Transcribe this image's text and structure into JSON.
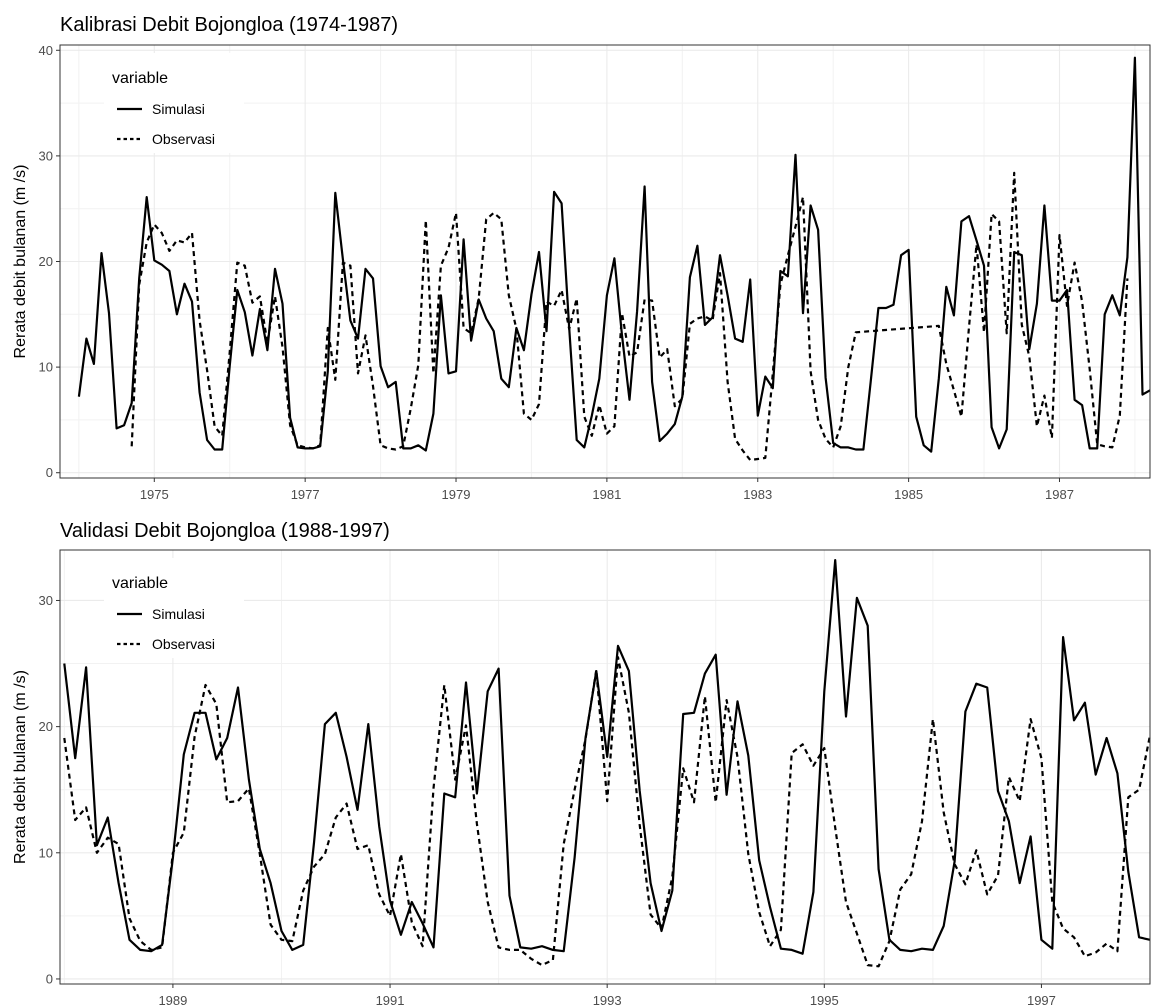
{
  "chart_data": [
    {
      "type": "line",
      "title": "Kalibrasi Debit Bojongloa (1974-1987)",
      "xlabel": "",
      "ylabel": "Rerata debit bulanan (m /s)",
      "xlim": [
        1973.75,
        1988.2
      ],
      "ylim": [
        -0.5,
        40.5
      ],
      "y_ticks": [
        0,
        10,
        20,
        30,
        40
      ],
      "x_ticks": [
        1975,
        1977,
        1979,
        1981,
        1983,
        1985,
        1987
      ],
      "grid": true,
      "legend": {
        "title": "variable",
        "position": "top-left"
      },
      "series": [
        {
          "name": "Simulasi",
          "line_style": "solid",
          "color": "#000000",
          "points": [
            [
              1974.0,
              7.2
            ],
            [
              1974.1,
              12.7
            ],
            [
              1974.2,
              10.3
            ],
            [
              1974.3,
              20.8
            ],
            [
              1974.4,
              15.1
            ],
            [
              1974.5,
              4.2
            ],
            [
              1974.6,
              4.5
            ],
            [
              1974.7,
              6.6
            ],
            [
              1974.8,
              18.4
            ],
            [
              1974.9,
              26.1
            ],
            [
              1975.0,
              20.1
            ],
            [
              1975.1,
              19.7
            ],
            [
              1975.2,
              19.1
            ],
            [
              1975.3,
              15.0
            ],
            [
              1975.4,
              17.9
            ],
            [
              1975.5,
              16.2
            ],
            [
              1975.6,
              7.6
            ],
            [
              1975.7,
              3.1
            ],
            [
              1975.8,
              2.2
            ],
            [
              1975.9,
              2.2
            ],
            [
              1976.0,
              10.1
            ],
            [
              1976.1,
              17.3
            ],
            [
              1976.2,
              15.2
            ],
            [
              1976.3,
              11.1
            ],
            [
              1976.4,
              15.5
            ],
            [
              1976.5,
              11.6
            ],
            [
              1976.6,
              19.3
            ],
            [
              1976.7,
              16.0
            ],
            [
              1976.8,
              5.2
            ],
            [
              1976.9,
              2.4
            ],
            [
              1977.0,
              2.3
            ],
            [
              1977.1,
              2.3
            ],
            [
              1977.2,
              2.5
            ],
            [
              1977.3,
              9.6
            ],
            [
              1977.4,
              26.5
            ],
            [
              1977.5,
              20.2
            ],
            [
              1977.6,
              14.4
            ],
            [
              1977.7,
              12.7
            ],
            [
              1977.8,
              19.3
            ],
            [
              1977.9,
              18.4
            ],
            [
              1978.0,
              10.1
            ],
            [
              1978.1,
              8.1
            ],
            [
              1978.2,
              8.6
            ],
            [
              1978.3,
              2.3
            ],
            [
              1978.4,
              2.3
            ],
            [
              1978.5,
              2.6
            ],
            [
              1978.6,
              2.1
            ],
            [
              1978.7,
              5.6
            ],
            [
              1978.8,
              16.8
            ],
            [
              1978.9,
              9.4
            ],
            [
              1979.0,
              9.6
            ],
            [
              1979.1,
              22.1
            ],
            [
              1979.2,
              12.5
            ],
            [
              1979.3,
              16.4
            ],
            [
              1979.4,
              14.6
            ],
            [
              1979.5,
              13.4
            ],
            [
              1979.6,
              8.9
            ],
            [
              1979.7,
              8.1
            ],
            [
              1979.8,
              13.7
            ],
            [
              1979.9,
              11.6
            ],
            [
              1980.0,
              16.9
            ],
            [
              1980.1,
              20.9
            ],
            [
              1980.2,
              13.4
            ],
            [
              1980.3,
              26.6
            ],
            [
              1980.4,
              25.5
            ],
            [
              1980.5,
              13.7
            ],
            [
              1980.6,
              3.1
            ],
            [
              1980.7,
              2.4
            ],
            [
              1980.8,
              5.4
            ],
            [
              1980.9,
              8.9
            ],
            [
              1981.0,
              16.8
            ],
            [
              1981.1,
              20.3
            ],
            [
              1981.2,
              13.0
            ],
            [
              1981.3,
              6.9
            ],
            [
              1981.4,
              15.3
            ],
            [
              1981.5,
              27.1
            ],
            [
              1981.6,
              8.6
            ],
            [
              1981.7,
              3.0
            ],
            [
              1981.8,
              3.7
            ],
            [
              1981.9,
              4.6
            ],
            [
              1982.0,
              7.2
            ],
            [
              1982.1,
              18.5
            ],
            [
              1982.2,
              21.5
            ],
            [
              1982.3,
              14.0
            ],
            [
              1982.4,
              14.7
            ],
            [
              1982.5,
              20.6
            ],
            [
              1982.6,
              16.8
            ],
            [
              1982.7,
              12.7
            ],
            [
              1982.8,
              12.4
            ],
            [
              1982.9,
              18.3
            ],
            [
              1983.0,
              5.4
            ],
            [
              1983.1,
              9.1
            ],
            [
              1983.2,
              8.0
            ],
            [
              1983.3,
              19.1
            ],
            [
              1983.4,
              18.6
            ],
            [
              1983.5,
              30.1
            ],
            [
              1983.6,
              15.1
            ],
            [
              1983.7,
              25.3
            ],
            [
              1983.8,
              23.0
            ],
            [
              1983.9,
              9.0
            ],
            [
              1984.0,
              2.8
            ],
            [
              1984.1,
              2.4
            ],
            [
              1984.2,
              2.4
            ],
            [
              1984.3,
              2.2
            ],
            [
              1984.4,
              2.2
            ],
            [
              1984.5,
              8.8
            ],
            [
              1984.6,
              15.6
            ],
            [
              1984.7,
              15.6
            ],
            [
              1984.8,
              15.9
            ],
            [
              1984.9,
              20.6
            ],
            [
              1985.0,
              21.1
            ],
            [
              1985.1,
              5.3
            ],
            [
              1985.2,
              2.6
            ],
            [
              1985.3,
              2.0
            ],
            [
              1985.4,
              8.9
            ],
            [
              1985.5,
              17.6
            ],
            [
              1985.6,
              14.9
            ],
            [
              1985.7,
              23.8
            ],
            [
              1985.8,
              24.3
            ],
            [
              1985.9,
              22.0
            ],
            [
              1986.0,
              19.6
            ],
            [
              1986.1,
              4.3
            ],
            [
              1986.2,
              2.3
            ],
            [
              1986.3,
              4.1
            ],
            [
              1986.4,
              20.9
            ],
            [
              1986.5,
              20.6
            ],
            [
              1986.6,
              11.7
            ],
            [
              1986.7,
              16.0
            ],
            [
              1986.8,
              25.3
            ],
            [
              1986.9,
              16.3
            ],
            [
              1987.0,
              16.3
            ],
            [
              1987.1,
              17.3
            ],
            [
              1987.2,
              6.9
            ],
            [
              1987.3,
              6.4
            ],
            [
              1987.4,
              2.3
            ],
            [
              1987.5,
              2.3
            ],
            [
              1987.6,
              15.0
            ],
            [
              1987.7,
              16.8
            ],
            [
              1987.8,
              14.9
            ],
            [
              1987.9,
              20.4
            ],
            [
              1988.0,
              39.3
            ],
            [
              1988.1,
              7.4
            ],
            [
              1988.2,
              7.8
            ]
          ]
        },
        {
          "name": "Observasi",
          "line_style": "dashed",
          "color": "#000000",
          "points": []
        }
      ]
    },
    {
      "type": "line",
      "title": "Validasi Debit Bojongloa (1988-1997)",
      "xlabel": "",
      "ylabel": "Rerata debit bulanan (m /s)",
      "xlim": [
        1987.96,
        1998.0
      ],
      "ylim": [
        -0.4,
        34.0
      ],
      "y_ticks": [
        0,
        10,
        20,
        30
      ],
      "x_ticks": [
        1989,
        1991,
        1993,
        1995,
        1997
      ],
      "grid": true,
      "legend": {
        "title": "variable",
        "position": "top-left"
      },
      "series": [
        {
          "name": "Simulasi",
          "line_style": "solid",
          "color": "#000000",
          "points": []
        },
        {
          "name": "Observasi",
          "line_style": "dashed",
          "color": "#000000",
          "points": []
        }
      ]
    }
  ]
}
